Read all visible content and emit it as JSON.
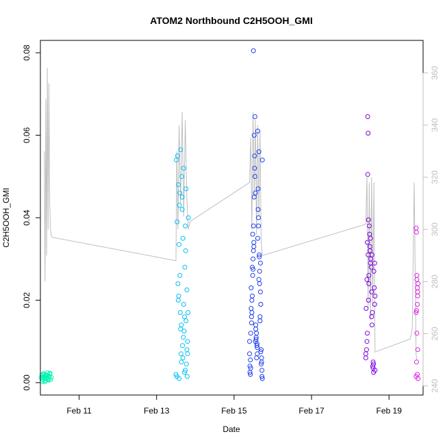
{
  "chart_data": {
    "type": "scatter",
    "title": "ATOM2 Northbound C2H5OOH_GMI",
    "xlabel": "Date",
    "ylabel": "C2H5OOH_GMI",
    "x_unit": "days in February (day-of-month)",
    "xlim": [
      10.0,
      19.88
    ],
    "ylim": [
      -0.003,
      0.083
    ],
    "x_ticks": [
      {
        "value": 11,
        "label": "Feb 11"
      },
      {
        "value": 13,
        "label": "Feb 13"
      },
      {
        "value": 15,
        "label": "Feb 15"
      },
      {
        "value": 17,
        "label": "Feb 17"
      },
      {
        "value": 19,
        "label": "Feb 19"
      }
    ],
    "y_ticks": [
      {
        "value": 0.0,
        "label": "0.00"
      },
      {
        "value": 0.02,
        "label": "0.02"
      },
      {
        "value": 0.04,
        "label": "0.04"
      },
      {
        "value": 0.06,
        "label": "0.06"
      },
      {
        "value": 0.08,
        "label": "0.08"
      }
    ],
    "y2_label_color": "#bebebe",
    "y2lim": [
      236.5,
      372.5
    ],
    "y2_ticks": [
      {
        "value": 240,
        "label": "240"
      },
      {
        "value": 260,
        "label": "260"
      },
      {
        "value": 280,
        "label": "280"
      },
      {
        "value": 300,
        "label": "300"
      },
      {
        "value": 320,
        "label": "320"
      },
      {
        "value": 340,
        "label": "340"
      },
      {
        "value": 360,
        "label": "360"
      }
    ],
    "secondary_line_color": "#bebebe",
    "secondary_line": {
      "x": [
        10.1,
        10.12,
        10.14,
        10.16,
        10.18,
        10.2,
        10.22,
        10.24,
        10.26,
        10.28,
        10.3,
        13.5,
        13.52,
        13.55,
        13.58,
        13.62,
        13.66,
        13.7,
        13.74,
        13.78,
        13.82,
        13.86,
        15.4,
        15.43,
        15.46,
        15.49,
        15.52,
        15.55,
        15.58,
        15.61,
        15.64,
        15.67,
        15.7,
        15.73,
        18.4,
        18.43,
        18.46,
        18.49,
        18.52,
        18.55,
        18.58,
        18.61,
        18.64,
        19.55,
        19.6,
        19.65,
        19.7,
        19.72
      ],
      "y": [
        330,
        280,
        350,
        290,
        362,
        300,
        356,
        310,
        300,
        298,
        297,
        288,
        330,
        300,
        340,
        310,
        345,
        305,
        342,
        312,
        300,
        303,
        318,
        335,
        300,
        345,
        312,
        342,
        298,
        340,
        305,
        338,
        295,
        290,
        302,
        320,
        270,
        318,
        265,
        320,
        270,
        318,
        253,
        258,
        262,
        318,
        252,
        250
      ]
    },
    "series": [
      {
        "name": "",
        "color": "#00f5b0",
        "x": [
          10.02,
          10.04,
          10.06,
          10.08,
          10.1,
          10.12,
          10.14,
          10.16,
          10.18,
          10.2,
          10.22,
          10.24,
          10.26,
          10.28,
          10.05,
          10.09,
          10.13,
          10.17,
          10.21,
          10.25,
          10.07,
          10.11,
          10.15,
          10.19,
          10.23
        ],
        "y": [
          0.0012,
          0.0018,
          0.0008,
          0.0022,
          0.0015,
          0.0005,
          0.0019,
          0.0011,
          0.0024,
          0.0009,
          0.0016,
          0.0021,
          0.0007,
          0.0013,
          0.0003,
          0.002,
          0.001,
          0.0017,
          0.0006,
          0.0023,
          0.0014,
          0.0002,
          0.0019,
          0.0008,
          0.0015
        ]
      },
      {
        "name": "",
        "color": "#00bff5",
        "x": [
          13.5,
          13.52,
          13.54,
          13.56,
          13.58,
          13.6,
          13.62,
          13.64,
          13.66,
          13.68,
          13.7,
          13.72,
          13.74,
          13.76,
          13.78,
          13.8,
          13.82,
          13.53,
          13.57,
          13.61,
          13.65,
          13.69,
          13.73,
          13.77,
          13.81,
          13.55,
          13.59,
          13.63,
          13.67,
          13.71,
          13.75,
          13.79,
          13.51,
          13.56,
          13.6,
          13.64,
          13.68,
          13.72,
          13.76,
          13.8,
          13.58,
          13.62,
          13.66,
          13.7,
          13.74,
          13.78
        ],
        "y": [
          0.002,
          0.0015,
          0.055,
          0.048,
          0.0335,
          0.026,
          0.0565,
          0.014,
          0.045,
          0.006,
          0.052,
          0.016,
          0.003,
          0.047,
          0.008,
          0.01,
          0.04,
          0.039,
          0.021,
          0.017,
          0.05,
          0.011,
          0.028,
          0.0045,
          0.017,
          0.024,
          0.043,
          0.007,
          0.009,
          0.0125,
          0.032,
          0.0015,
          0.054,
          0.02,
          0.046,
          0.005,
          0.035,
          0.0025,
          0.015,
          0.007,
          0.001,
          0.013,
          0.042,
          0.019,
          0.038,
          0.0225
        ]
      },
      {
        "name": "",
        "color": "#1a3cf0",
        "x": [
          15.4,
          15.43,
          15.46,
          15.49,
          15.52,
          15.55,
          15.58,
          15.61,
          15.64,
          15.67,
          15.7,
          15.73,
          15.41,
          15.44,
          15.47,
          15.5,
          15.53,
          15.56,
          15.59,
          15.62,
          15.65,
          15.68,
          15.71,
          15.42,
          15.45,
          15.48,
          15.51,
          15.54,
          15.57,
          15.6,
          15.63,
          15.66,
          15.69,
          15.72,
          15.4,
          15.44,
          15.48,
          15.52,
          15.56,
          15.6,
          15.64,
          15.68,
          15.72,
          15.42,
          15.46,
          15.5,
          15.54,
          15.58,
          15.62,
          15.66,
          15.7,
          15.43,
          15.47,
          15.51,
          15.55,
          15.59,
          15.63,
          15.67,
          15.71,
          15.41,
          15.45,
          15.49,
          15.53,
          15.57,
          15.61,
          15.65,
          15.69,
          15.73,
          15.5
        ],
        "y": [
          0.007,
          0.012,
          0.02,
          0.03,
          0.045,
          0.01,
          0.006,
          0.035,
          0.025,
          0.015,
          0.008,
          0.001,
          0.004,
          0.018,
          0.028,
          0.038,
          0.055,
          0.013,
          0.009,
          0.047,
          0.031,
          0.022,
          0.005,
          0.002,
          0.016,
          0.026,
          0.033,
          0.05,
          0.011,
          0.007,
          0.04,
          0.027,
          0.019,
          0.003,
          0.01,
          0.023,
          0.036,
          0.06,
          0.014,
          0.0085,
          0.056,
          0.029,
          0.0015,
          0.0055,
          0.017,
          0.032,
          0.0645,
          0.012,
          0.042,
          0.024,
          0.0045,
          0.0035,
          0.021,
          0.034,
          0.046,
          0.0095,
          0.038,
          0.016,
          0.006,
          0.0025,
          0.0145,
          0.0275,
          0.052,
          0.0105,
          0.061,
          0.0305,
          0.0075,
          0.054,
          0.0805
        ]
      },
      {
        "name": "",
        "color": "#7a00e0",
        "x": [
          18.4,
          18.43,
          18.46,
          18.49,
          18.52,
          18.55,
          18.58,
          18.61,
          18.64,
          18.41,
          18.44,
          18.47,
          18.5,
          18.53,
          18.56,
          18.59,
          18.62,
          18.42,
          18.45,
          18.48,
          18.51,
          18.54,
          18.57,
          18.6,
          18.63,
          18.4,
          18.44,
          18.48,
          18.52,
          18.56,
          18.6,
          18.64,
          18.43,
          18.47,
          18.51,
          18.55,
          18.59,
          18.63,
          18.45,
          18.46
        ],
        "y": [
          0.006,
          0.025,
          0.031,
          0.038,
          0.029,
          0.022,
          0.004,
          0.027,
          0.003,
          0.018,
          0.034,
          0.02,
          0.036,
          0.03,
          0.014,
          0.005,
          0.023,
          0.008,
          0.0505,
          0.026,
          0.033,
          0.028,
          0.017,
          0.0025,
          0.019,
          0.007,
          0.012,
          0.024,
          0.035,
          0.031,
          0.0045,
          0.021,
          0.01,
          0.0395,
          0.032,
          0.016,
          0.0035,
          0.029,
          0.0645,
          0.0605
        ]
      },
      {
        "name": "",
        "color": "#e020e0",
        "x": [
          19.7,
          19.71,
          19.72,
          19.73,
          19.74,
          19.75,
          19.7,
          19.72,
          19.74,
          19.71,
          19.73,
          19.75,
          19.7,
          19.72,
          19.74,
          19.71,
          19.73
        ],
        "y": [
          0.0375,
          0.0365,
          0.026,
          0.023,
          0.022,
          0.024,
          0.017,
          0.012,
          0.008,
          0.005,
          0.002,
          0.001,
          0.0015,
          0.025,
          0.021,
          0.0175,
          0.019
        ]
      }
    ]
  }
}
